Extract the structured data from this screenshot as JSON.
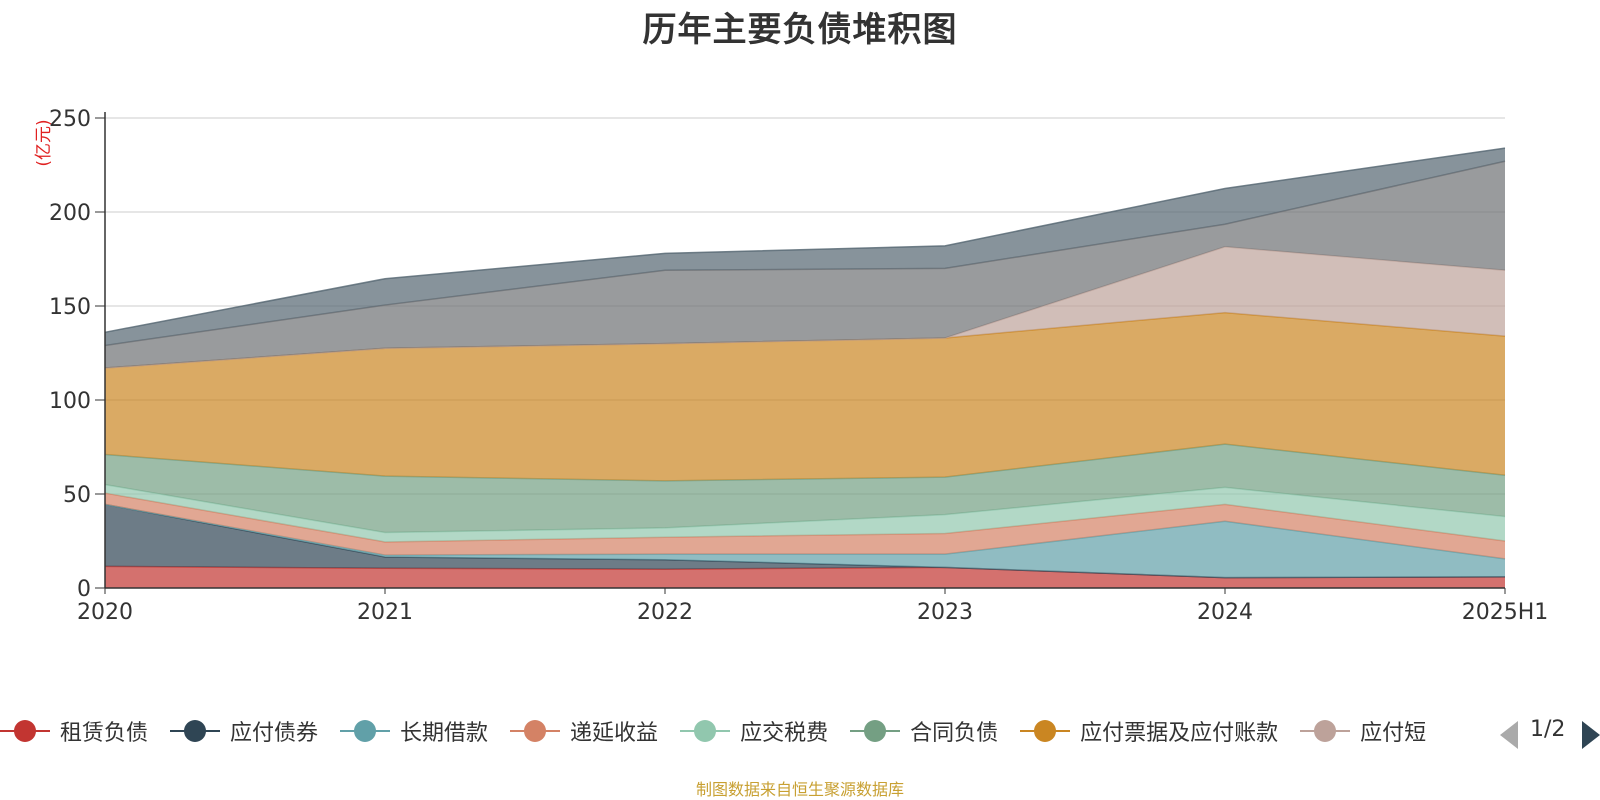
{
  "chart_data": {
    "type": "area",
    "stacked": true,
    "title": "历年主要负债堆积图",
    "unit_label": "(亿元)",
    "categories": [
      "2020",
      "2021",
      "2022",
      "2023",
      "2024",
      "2025H1"
    ],
    "ylim": [
      0,
      250
    ],
    "yticks": [
      0,
      50,
      100,
      150,
      200,
      250
    ],
    "grid": true,
    "series": [
      {
        "name": "租赁负债",
        "color": "#c23531",
        "values": [
          11.5,
          10.5,
          10.0,
          11.0,
          5.5,
          6.0
        ]
      },
      {
        "name": "应付债券",
        "color": "#2f4554",
        "values": [
          33.0,
          6.0,
          5.0,
          0.0,
          0.0,
          0.0
        ]
      },
      {
        "name": "长期借款",
        "color": "#61a0a8",
        "values": [
          0.0,
          1.0,
          3.0,
          7.0,
          30.0,
          9.5
        ]
      },
      {
        "name": "递延收益",
        "color": "#d48265",
        "values": [
          6.0,
          7.0,
          9.0,
          11.0,
          9.0,
          9.5
        ]
      },
      {
        "name": "应交税费",
        "color": "#91c7ae",
        "values": [
          4.5,
          5.0,
          5.0,
          10.0,
          9.0,
          13.0
        ]
      },
      {
        "name": "合同负债",
        "color": "#749f83",
        "values": [
          16.0,
          30.0,
          25.0,
          20.0,
          23.0,
          22.0
        ]
      },
      {
        "name": "应付票据及应付账款",
        "color": "#ca8622",
        "values": [
          46.0,
          68.0,
          73.0,
          74.0,
          70.0,
          74.0
        ]
      },
      {
        "name": "应付短期",
        "color": "#bda29a",
        "values": [
          0.0,
          0.0,
          0.0,
          0.0,
          35.0,
          35.0
        ]
      },
      {
        "name": "",
        "color": "#6e7074",
        "values": [
          12.0,
          23.0,
          39.0,
          37.0,
          12.0,
          58.0
        ]
      },
      {
        "name": "",
        "color": "#546570",
        "values": [
          7.0,
          14.0,
          9.0,
          12.0,
          19.0,
          7.0
        ]
      }
    ]
  },
  "legend": {
    "items": [
      "租赁负债",
      "应付债券",
      "长期借款",
      "递延收益",
      "应交税费",
      "合同负债",
      "应付票据及应付账款",
      "应付短"
    ],
    "page": "1/2"
  },
  "footer": {
    "source": "制图数据来自恒生聚源数据库"
  },
  "colors": {
    "axis": "#333333",
    "grid": "#cccccc",
    "unit_label": "#e02020",
    "footer": "#c8a032"
  }
}
